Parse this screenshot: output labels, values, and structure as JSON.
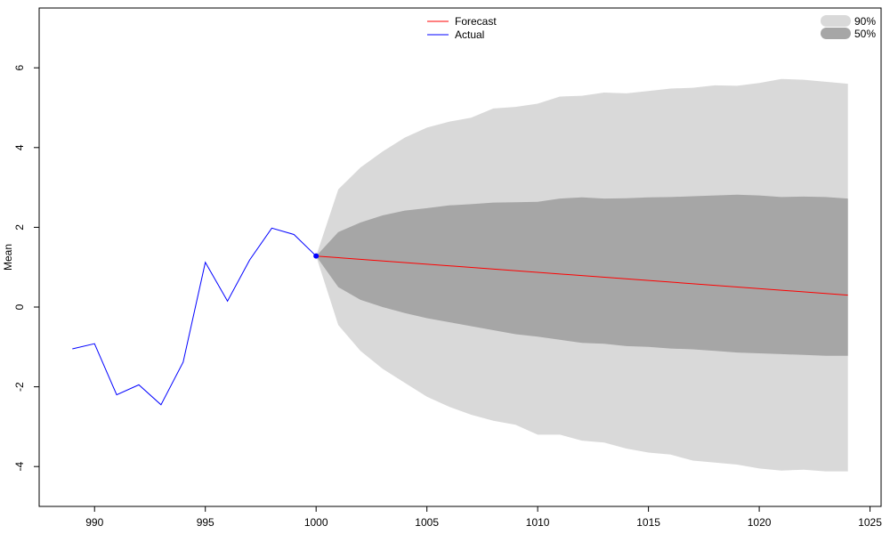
{
  "chart_data": {
    "type": "line",
    "title": "",
    "xlabel": "",
    "ylabel": "Mean",
    "xlim": [
      987.5,
      1025.5
    ],
    "ylim": [
      -5.0,
      7.5
    ],
    "xticks": [
      990,
      995,
      1000,
      1005,
      1010,
      1015,
      1020,
      1025
    ],
    "xtick_labels": [
      "990",
      "995",
      "1000",
      "1005",
      "1010",
      "1015",
      "1020",
      "1025"
    ],
    "yticks": [
      -4,
      -2,
      0,
      2,
      4,
      6
    ],
    "ytick_labels": [
      "-4",
      "-2",
      "0",
      "2",
      "4",
      "6"
    ],
    "grid": false,
    "legend": {
      "position": "top-center",
      "entries": [
        {
          "label": "Forecast",
          "color": "#ff0000"
        },
        {
          "label": "Actual",
          "color": "#0000ff"
        }
      ]
    },
    "band_legend": {
      "position": "top-right",
      "entries": [
        {
          "label": "90%",
          "color": "#d9d9d9"
        },
        {
          "label": "50%",
          "color": "#a6a6a6"
        }
      ]
    },
    "series": [
      {
        "name": "Actual",
        "color": "#0000ff",
        "x": [
          989,
          990,
          991,
          992,
          993,
          994,
          995,
          996,
          997,
          998,
          999,
          1000
        ],
        "y": [
          -1.05,
          -0.92,
          -2.2,
          -1.95,
          -2.45,
          -1.38,
          1.12,
          0.15,
          1.18,
          1.98,
          1.82,
          1.28
        ]
      },
      {
        "name": "Forecast",
        "color": "#ff0000",
        "x": [
          1000,
          1024
        ],
        "y": [
          1.28,
          0.3
        ]
      }
    ],
    "bands": [
      {
        "name": "90%",
        "color": "#d9d9d9",
        "x": [
          1000,
          1001,
          1002,
          1003,
          1004,
          1005,
          1006,
          1007,
          1008,
          1009,
          1010,
          1011,
          1012,
          1013,
          1014,
          1015,
          1016,
          1017,
          1018,
          1019,
          1020,
          1021,
          1022,
          1023,
          1024
        ],
        "upper": [
          1.28,
          2.95,
          3.5,
          3.9,
          4.25,
          4.5,
          4.65,
          4.75,
          4.98,
          5.02,
          5.1,
          5.28,
          5.3,
          5.38,
          5.36,
          5.42,
          5.48,
          5.5,
          5.56,
          5.55,
          5.62,
          5.72,
          5.7,
          5.65,
          5.6
        ],
        "lower": [
          1.28,
          -0.45,
          -1.1,
          -1.55,
          -1.9,
          -2.25,
          -2.5,
          -2.7,
          -2.85,
          -2.95,
          -3.2,
          -3.2,
          -3.35,
          -3.4,
          -3.55,
          -3.65,
          -3.7,
          -3.85,
          -3.9,
          -3.95,
          -4.05,
          -4.1,
          -4.08,
          -4.12,
          -4.12
        ]
      },
      {
        "name": "50%",
        "color": "#a6a6a6",
        "x": [
          1000,
          1001,
          1002,
          1003,
          1004,
          1005,
          1006,
          1007,
          1008,
          1009,
          1010,
          1011,
          1012,
          1013,
          1014,
          1015,
          1016,
          1017,
          1018,
          1019,
          1020,
          1021,
          1022,
          1023,
          1024
        ],
        "upper": [
          1.28,
          1.88,
          2.12,
          2.3,
          2.42,
          2.48,
          2.55,
          2.58,
          2.62,
          2.63,
          2.64,
          2.72,
          2.75,
          2.72,
          2.73,
          2.75,
          2.76,
          2.78,
          2.8,
          2.82,
          2.8,
          2.76,
          2.77,
          2.76,
          2.72
        ],
        "lower": [
          1.28,
          0.5,
          0.18,
          0.0,
          -0.15,
          -0.28,
          -0.38,
          -0.48,
          -0.58,
          -0.68,
          -0.74,
          -0.82,
          -0.9,
          -0.92,
          -0.98,
          -1.0,
          -1.04,
          -1.06,
          -1.1,
          -1.14,
          -1.16,
          -1.18,
          -1.2,
          -1.22,
          -1.22
        ]
      }
    ]
  }
}
